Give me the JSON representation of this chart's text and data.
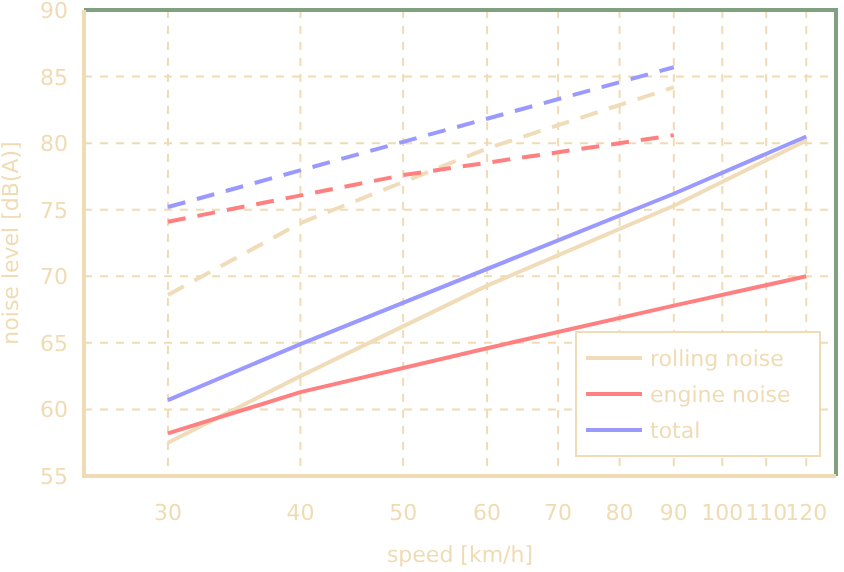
{
  "chart_data": {
    "type": "line",
    "xlabel": "speed [km/h]",
    "ylabel": "noise level [dB(A)]",
    "log": "x",
    "xlim": [
      25,
      128
    ],
    "xticks": [
      30,
      40,
      50,
      60,
      70,
      80,
      90,
      100,
      110,
      120
    ],
    "ylim": [
      55,
      90
    ],
    "yticks": [
      55,
      60,
      65,
      70,
      75,
      80,
      85,
      90
    ],
    "grid": true,
    "legend": "bottom right",
    "marker": "none",
    "series": [
      {
        "name": "rolling noise",
        "color": "#f0dcb8",
        "x": [
          30,
          40,
          60,
          90,
          120
        ],
        "values": [
          57.5,
          62.5,
          69.3,
          75.3,
          80.2
        ]
      },
      {
        "name": "engine noise",
        "color": "#ff8080",
        "x": [
          30,
          40,
          60,
          90,
          120
        ],
        "values": [
          58.2,
          61.3,
          64.6,
          67.8,
          70
        ]
      },
      {
        "name": "total",
        "color": "#9999ff",
        "x": [
          30,
          40,
          70,
          90,
          120
        ],
        "values": [
          60.7,
          64.9,
          72.7,
          76.2,
          80.5
        ]
      },
      {
        "color": "#f0dcb8",
        "line_style": "dashed",
        "x": [
          30,
          40,
          60,
          90
        ],
        "values": [
          68.6,
          74,
          79.6,
          84.2
        ]
      },
      {
        "color": "#ff8080",
        "line_style": "dashed",
        "x": [
          30,
          50,
          90
        ],
        "values": [
          74.1,
          77.6,
          80.6
        ]
      },
      {
        "color": "#9999ff",
        "line_style": "dashed",
        "x": [
          30,
          50,
          90
        ],
        "values": [
          75.2,
          80.1,
          85.7
        ]
      }
    ]
  }
}
